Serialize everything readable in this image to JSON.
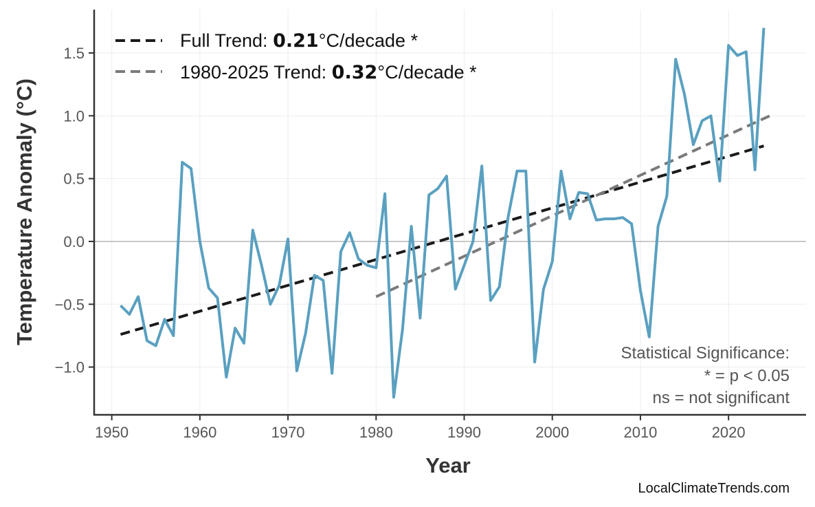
{
  "chart_data": {
    "type": "line",
    "title": "",
    "xlabel": "Year",
    "ylabel": "Temperature Anomaly (°C)",
    "xlim": [
      1948,
      2028.8
    ],
    "ylim": [
      -1.38,
      1.845
    ],
    "xticks": [
      1950,
      1960,
      1970,
      1980,
      1990,
      2000,
      2010,
      2020
    ],
    "yticks": [
      -1.0,
      -0.5,
      0.0,
      0.5,
      1.0,
      1.5
    ],
    "ytick_labels": [
      "−1.0",
      "−0.5",
      "0.0",
      "0.5",
      "1.0",
      "1.5"
    ],
    "grid": true,
    "colors": {
      "series": "#5aa0c0",
      "full_trend": "#1a1a1a",
      "recent_trend": "#7a7a7a",
      "zero_line": "#b5b5b5"
    },
    "series": [
      {
        "x": [
          1951,
          1952,
          1953,
          1954,
          1955,
          1956,
          1957,
          1958,
          1959,
          1960,
          1961,
          1962,
          1963,
          1964,
          1965,
          1966,
          1967,
          1968,
          1969,
          1970,
          1971,
          1972,
          1973,
          1974,
          1975,
          1976,
          1977,
          1978,
          1979,
          1980,
          1981,
          1982,
          1983,
          1984,
          1985,
          1986,
          1987,
          1988,
          1989,
          1990,
          1991,
          1992,
          1993,
          1994,
          1995,
          1996,
          1997,
          1998,
          1999,
          2000,
          2001,
          2002,
          2003,
          2004,
          2005,
          2006,
          2007,
          2008,
          2009,
          2010,
          2011,
          2012,
          2013,
          2014,
          2015,
          2016,
          2017,
          2018,
          2019,
          2020,
          2021,
          2022,
          2023,
          2024
        ],
        "y": [
          -0.51,
          -0.58,
          -0.44,
          -0.79,
          -0.83,
          -0.62,
          -0.75,
          0.63,
          0.58,
          0.0,
          -0.37,
          -0.45,
          -1.08,
          -0.69,
          -0.81,
          0.09,
          -0.19,
          -0.5,
          -0.35,
          0.02,
          -1.03,
          -0.73,
          -0.27,
          -0.31,
          -1.05,
          -0.08,
          0.07,
          -0.14,
          -0.19,
          -0.21,
          0.38,
          -1.24,
          -0.7,
          0.12,
          -0.61,
          0.37,
          0.42,
          0.52,
          -0.38,
          -0.19,
          0.0,
          0.6,
          -0.47,
          -0.36,
          0.2,
          0.56,
          0.56,
          -0.96,
          -0.38,
          -0.16,
          0.56,
          0.18,
          0.39,
          0.38,
          0.17,
          0.18,
          0.18,
          0.19,
          0.14,
          -0.39,
          -0.76,
          0.12,
          0.36,
          1.45,
          1.17,
          0.77,
          0.96,
          1.0,
          0.48,
          1.56,
          1.48,
          1.51,
          0.57,
          1.7
        ]
      }
    ],
    "trends": [
      {
        "label_prefix": "Full Trend: ",
        "value": "0.21",
        "label_suffix": "°C/decade *",
        "x": [
          1951,
          2024
        ],
        "y": [
          -0.74,
          0.76
        ]
      },
      {
        "label_prefix": "1980-2025 Trend: ",
        "value": "0.32",
        "label_suffix": "°C/decade *",
        "x": [
          1980,
          2025
        ],
        "y": [
          -0.44,
          1.01
        ]
      }
    ],
    "legend_position": "top-left",
    "annotation": [
      "Statistical Significance:",
      "* = p < 0.05",
      "ns = not significant"
    ]
  },
  "credit": "LocalClimateTrends.com"
}
